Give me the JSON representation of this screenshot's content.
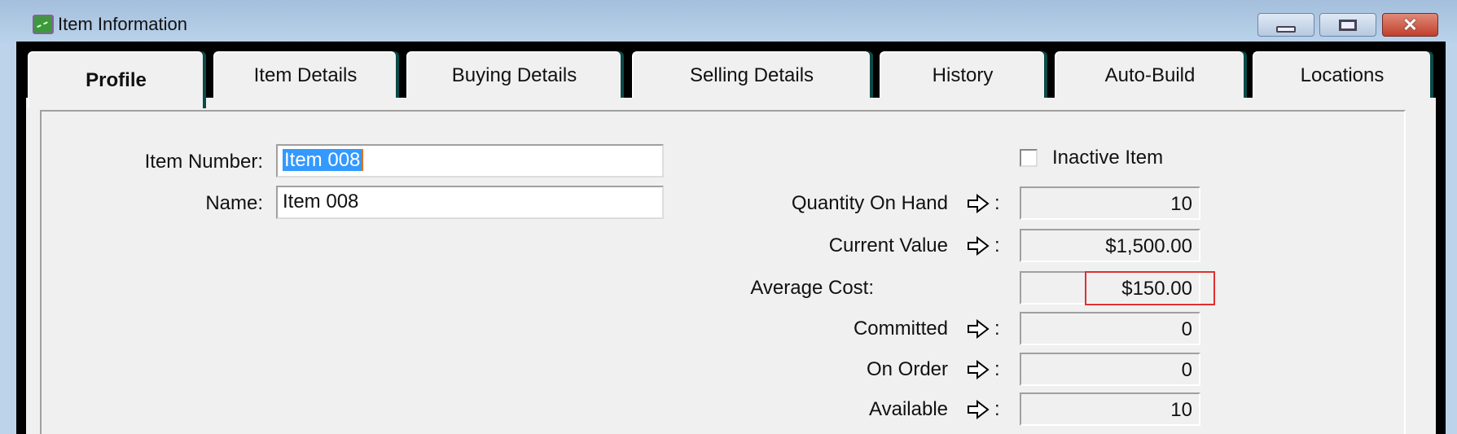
{
  "window": {
    "title": "Item Information",
    "icon": "chart-app-icon"
  },
  "tabs": [
    {
      "label": "Profile",
      "active": true
    },
    {
      "label": "Item Details"
    },
    {
      "label": "Buying Details"
    },
    {
      "label": "Selling Details"
    },
    {
      "label": "History"
    },
    {
      "label": "Auto-Build"
    },
    {
      "label": "Locations"
    }
  ],
  "profile": {
    "item_number_label": "Item Number:",
    "item_number_value": "Item 008",
    "name_label": "Name:",
    "name_value": "Item 008",
    "inactive_label": "Inactive Item",
    "inactive_checked": false,
    "stats": [
      {
        "label": "Quantity On Hand",
        "value": "10",
        "drilldown": true
      },
      {
        "label": "Current Value",
        "value": "$1,500.00",
        "drilldown": true
      },
      {
        "label": "Average Cost:",
        "value": "$150.00",
        "drilldown": false,
        "highlighted": true
      },
      {
        "label": "Committed",
        "value": "0",
        "drilldown": true
      },
      {
        "label": "On Order",
        "value": "0",
        "drilldown": true
      },
      {
        "label": "Available",
        "value": "10",
        "drilldown": true
      }
    ],
    "colon": ":"
  },
  "colors": {
    "highlight": "#e03030",
    "selection": "#3399ff"
  }
}
